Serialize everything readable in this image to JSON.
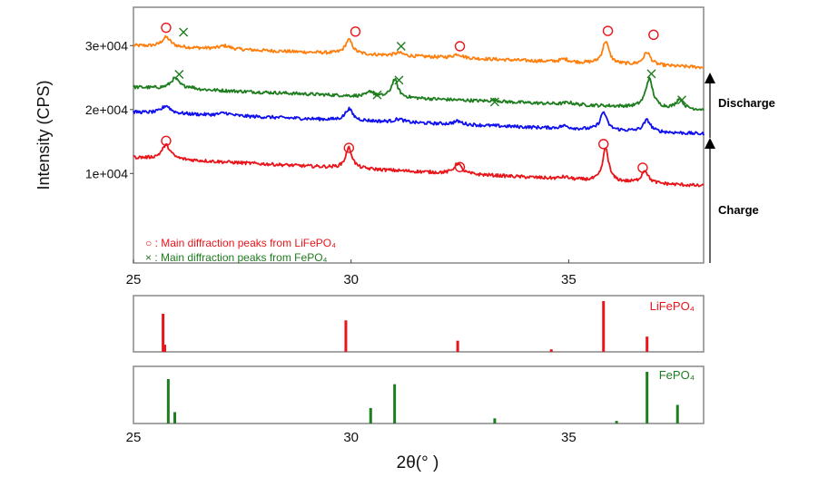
{
  "chart_data": [
    {
      "type": "line",
      "ylabel": "Intensity (CPS)",
      "xlim": [
        25,
        38.1
      ],
      "ylim": [
        -4000,
        36000
      ],
      "xticks": [
        25,
        30,
        35
      ],
      "yticks": [
        {
          "value": 10000,
          "label": "1e+004"
        },
        {
          "value": 20000,
          "label": "2e+004"
        },
        {
          "value": 30000,
          "label": "3e+004"
        }
      ],
      "legend": {
        "placement": "bottom-left",
        "items": [
          {
            "marker": "circle",
            "color": "#e8151b",
            "text": "○ : Main diffraction peaks from LiFePO₄"
          },
          {
            "marker": "cross",
            "color": "#1e7d1e",
            "text": "× : Main diffraction peaks from FePO₄"
          }
        ]
      },
      "side_labels": [
        {
          "text": "Discharge",
          "direction": "up"
        },
        {
          "text": "Charge",
          "direction": "up"
        }
      ],
      "series": [
        {
          "color": "#ff7f0e",
          "baseline": 30000,
          "slope": -260,
          "peaks": [
            [
              25.75,
              1500,
              0.12
            ],
            [
              27.1,
              500,
              0.15
            ],
            [
              29.95,
              2200,
              0.1
            ],
            [
              31.1,
              450,
              0.12
            ],
            [
              32.45,
              600,
              0.12
            ],
            [
              34.9,
              450,
              0.12
            ],
            [
              35.85,
              3500,
              0.09
            ],
            [
              36.8,
              2000,
              0.1
            ]
          ],
          "markers": [
            {
              "x": 25.75,
              "y": 32800,
              "type": "circle"
            },
            {
              "x": 26.15,
              "y": 32100,
              "type": "cross"
            },
            {
              "x": 30.1,
              "y": 32200,
              "type": "circle"
            },
            {
              "x": 31.15,
              "y": 29900,
              "type": "cross"
            },
            {
              "x": 32.5,
              "y": 29900,
              "type": "circle"
            },
            {
              "x": 35.9,
              "y": 32300,
              "type": "circle"
            },
            {
              "x": 36.95,
              "y": 31700,
              "type": "circle"
            }
          ]
        },
        {
          "color": "#1e7d1e",
          "baseline": 23500,
          "slope": -270,
          "peaks": [
            [
              25.95,
              1600,
              0.12
            ],
            [
              26.3,
              300,
              0.12
            ],
            [
              30.45,
              800,
              0.08
            ],
            [
              31.0,
              2800,
              0.09
            ],
            [
              33.3,
              250,
              0.1
            ],
            [
              35.0,
              300,
              0.12
            ],
            [
              36.85,
              4500,
              0.1
            ],
            [
              37.55,
              1600,
              0.09
            ]
          ],
          "markers": [
            {
              "x": 26.05,
              "y": 25500,
              "type": "cross"
            },
            {
              "x": 30.6,
              "y": 22300,
              "type": "cross"
            },
            {
              "x": 31.1,
              "y": 24600,
              "type": "cross"
            },
            {
              "x": 33.3,
              "y": 21200,
              "type": "cross"
            },
            {
              "x": 36.9,
              "y": 25600,
              "type": "cross"
            },
            {
              "x": 37.6,
              "y": 21500,
              "type": "cross"
            }
          ]
        },
        {
          "color": "#1010ee",
          "baseline": 19600,
          "slope": -260,
          "peaks": [
            [
              25.75,
              1200,
              0.12
            ],
            [
              27.1,
              400,
              0.15
            ],
            [
              29.95,
              1800,
              0.1
            ],
            [
              31.1,
              500,
              0.12
            ],
            [
              32.45,
              500,
              0.12
            ],
            [
              34.9,
              400,
              0.12
            ],
            [
              35.8,
              2800,
              0.09
            ],
            [
              36.8,
              1800,
              0.1
            ]
          ],
          "markers": []
        },
        {
          "color": "#e8151b",
          "baseline": 12500,
          "slope": -340,
          "peaks": [
            [
              25.75,
              2200,
              0.12
            ],
            [
              29.95,
              3200,
              0.09
            ],
            [
              32.45,
              1600,
              0.1
            ],
            [
              34.9,
              300,
              0.12
            ],
            [
              35.85,
              5200,
              0.08
            ],
            [
              36.75,
              2000,
              0.09
            ]
          ],
          "markers": [
            {
              "x": 25.75,
              "y": 15100,
              "type": "circle"
            },
            {
              "x": 29.95,
              "y": 14000,
              "type": "circle"
            },
            {
              "x": 32.5,
              "y": 11000,
              "type": "circle"
            },
            {
              "x": 35.8,
              "y": 14600,
              "type": "circle"
            },
            {
              "x": 36.7,
              "y": 10900,
              "type": "circle"
            }
          ]
        }
      ]
    },
    {
      "type": "bar",
      "name": "LiFePO₄",
      "color": "#e8151b",
      "xlim": [
        25,
        38.1
      ],
      "ylim": [
        0,
        100
      ],
      "x": [
        25.68,
        25.72,
        29.88,
        32.45,
        34.6,
        35.8,
        36.8
      ],
      "values": [
        75,
        14,
        62,
        22,
        5,
        100,
        30
      ]
    },
    {
      "type": "bar",
      "name": "FePO₄",
      "color": "#1e7d1e",
      "xlim": [
        25,
        38.1
      ],
      "ylim": [
        0,
        100
      ],
      "x": [
        25.8,
        25.95,
        30.45,
        31.0,
        33.3,
        36.1,
        36.8,
        37.5
      ],
      "values": [
        86,
        22,
        30,
        76,
        10,
        5,
        100,
        36
      ],
      "xticks": [
        25,
        30,
        35
      ],
      "xlabel": "2θ(° )"
    }
  ]
}
